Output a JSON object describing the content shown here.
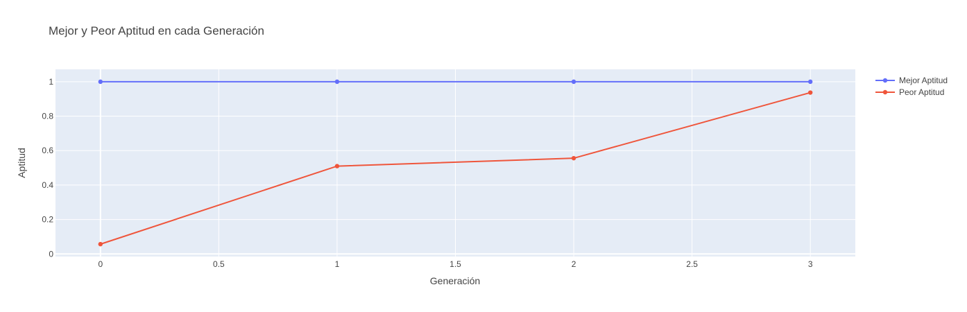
{
  "chart_data": {
    "type": "line",
    "title": "Mejor y Peor Aptitud en cada Generación",
    "xlabel": "Generación",
    "ylabel": "Aptitud",
    "x": [
      0,
      1,
      2,
      3
    ],
    "xlim": [
      -0.19,
      3.19
    ],
    "ylim": [
      -0.015,
      1.072
    ],
    "x_ticks": [
      0,
      0.5,
      1,
      1.5,
      2,
      2.5,
      3
    ],
    "x_tick_labels": [
      "0",
      "0.5",
      "1",
      "1.5",
      "2",
      "2.5",
      "3"
    ],
    "y_ticks": [
      0,
      0.2,
      0.4,
      0.6,
      0.8,
      1
    ],
    "y_tick_labels": [
      "0",
      "0.2",
      "0.4",
      "0.6",
      "0.8",
      "1"
    ],
    "grid": true,
    "legend_position": "top-right",
    "series": [
      {
        "name": "Mejor Aptitud",
        "color": "#636efa",
        "values": [
          1,
          1,
          1,
          1
        ]
      },
      {
        "name": "Peor Aptitud",
        "color": "#ef553b",
        "values": [
          0.057,
          0.51,
          0.556,
          0.937
        ]
      }
    ]
  }
}
